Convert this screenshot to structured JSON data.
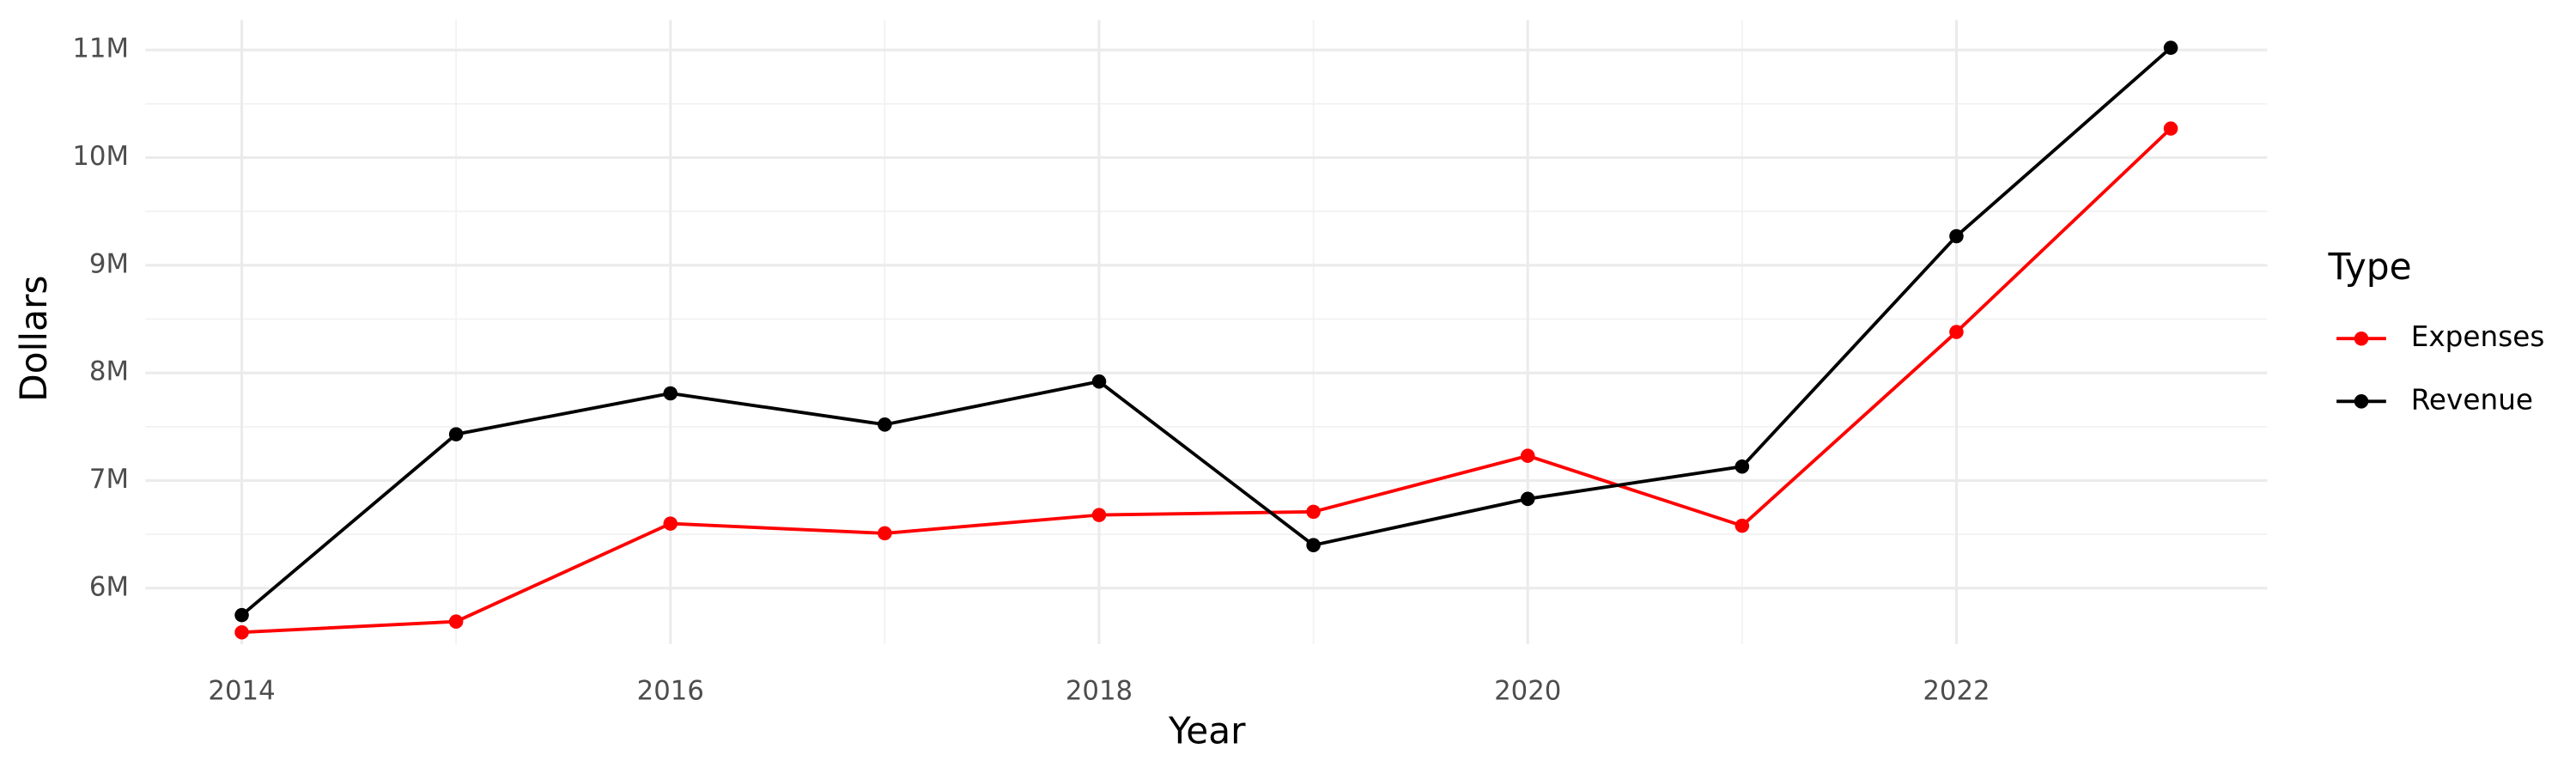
{
  "chart_data": {
    "type": "line",
    "x_label": "Year",
    "y_label": "Dollars",
    "legend_title": "Type",
    "x": [
      2014,
      2015,
      2016,
      2017,
      2018,
      2019,
      2020,
      2021,
      2022,
      2023
    ],
    "series": [
      {
        "name": "Expenses",
        "color": "#ff0000",
        "values": [
          5590000,
          5690000,
          6600000,
          6510000,
          6680000,
          6710000,
          7230000,
          6580000,
          8380000,
          10270000
        ]
      },
      {
        "name": "Revenue",
        "color": "#000000",
        "values": [
          5750000,
          7430000,
          7810000,
          7520000,
          7920000,
          6400000,
          6830000,
          7130000,
          9270000,
          11020000
        ]
      }
    ],
    "xlim": [
      2013.55,
      2023.45
    ],
    "xticks": [
      2014,
      2016,
      2018,
      2020,
      2022
    ],
    "ylim": [
      5480000,
      11280000
    ],
    "yticks": [
      {
        "value": 6000000,
        "label": "6M"
      },
      {
        "value": 7000000,
        "label": "7M"
      },
      {
        "value": 8000000,
        "label": "8M"
      },
      {
        "value": 9000000,
        "label": "9M"
      },
      {
        "value": 10000000,
        "label": "10M"
      },
      {
        "value": 11000000,
        "label": "11M"
      }
    ],
    "grid": true,
    "minor_grid": true,
    "legend_position": "right"
  }
}
